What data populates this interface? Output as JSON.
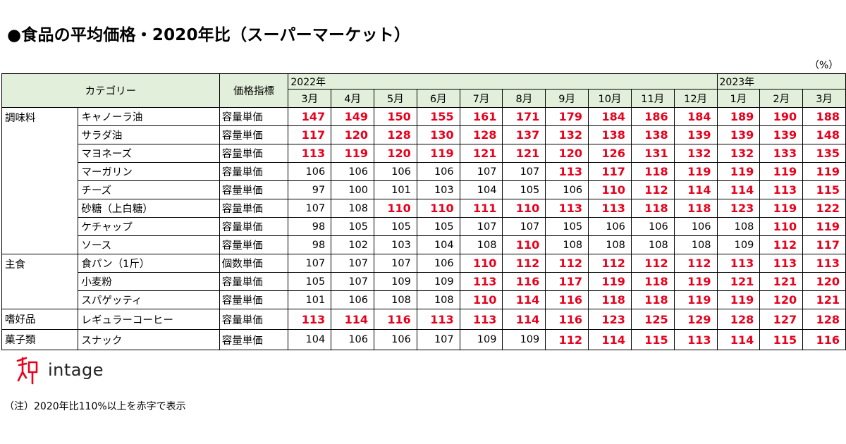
{
  "title": "●食品の平均価格・2020年比（スーパーマーケット）",
  "unit": "（%）",
  "headers": {
    "category": "カテゴリー",
    "indicator": "価格指標"
  },
  "years": [
    {
      "label": "2022年",
      "span": 10
    },
    {
      "label": "2023年",
      "span": 3
    }
  ],
  "months": [
    "3月",
    "4月",
    "5月",
    "6月",
    "7月",
    "8月",
    "9月",
    "10月",
    "11月",
    "12月",
    "1月",
    "2月",
    "3月"
  ],
  "highlight_threshold": 110,
  "highlight_color": "#e8001c",
  "header_bg": "#e2efda",
  "chart_data": {
    "type": "table",
    "title": "●食品の平均価格・2020年比（スーパーマーケット）",
    "unit": "%",
    "columns": [
      "2022年3月",
      "2022年4月",
      "2022年5月",
      "2022年6月",
      "2022年7月",
      "2022年8月",
      "2022年9月",
      "2022年10月",
      "2022年11月",
      "2022年12月",
      "2023年1月",
      "2023年2月",
      "2023年3月"
    ],
    "groups": [
      {
        "name": "調味料",
        "rows": [
          {
            "item": "キャノーラ油",
            "indicator": "容量単価",
            "values": [
              147,
              149,
              150,
              155,
              161,
              171,
              179,
              184,
              186,
              184,
              189,
              190,
              188
            ]
          },
          {
            "item": "サラダ油",
            "indicator": "容量単価",
            "values": [
              117,
              120,
              128,
              130,
              128,
              137,
              132,
              138,
              138,
              139,
              139,
              139,
              148
            ]
          },
          {
            "item": "マヨネーズ",
            "indicator": "容量単価",
            "values": [
              113,
              119,
              120,
              119,
              121,
              121,
              120,
              126,
              131,
              132,
              132,
              133,
              135
            ]
          },
          {
            "item": "マーガリン",
            "indicator": "容量単価",
            "values": [
              106,
              106,
              106,
              106,
              107,
              107,
              113,
              117,
              118,
              119,
              119,
              119,
              119
            ]
          },
          {
            "item": "チーズ",
            "indicator": "容量単価",
            "values": [
              97,
              100,
              101,
              103,
              104,
              105,
              106,
              110,
              112,
              114,
              114,
              113,
              115
            ]
          },
          {
            "item": "砂糖（上白糖）",
            "indicator": "容量単価",
            "values": [
              107,
              108,
              110,
              110,
              111,
              110,
              113,
              113,
              118,
              118,
              123,
              119,
              122
            ]
          },
          {
            "item": "ケチャップ",
            "indicator": "容量単価",
            "values": [
              98,
              105,
              105,
              105,
              107,
              107,
              105,
              106,
              106,
              106,
              108,
              110,
              119
            ]
          },
          {
            "item": "ソース",
            "indicator": "容量単価",
            "values": [
              98,
              102,
              103,
              104,
              108,
              110,
              108,
              108,
              108,
              108,
              109,
              112,
              117
            ]
          }
        ]
      },
      {
        "name": "主食",
        "rows": [
          {
            "item": "食パン（1斤）",
            "indicator": "個数単価",
            "values": [
              107,
              107,
              107,
              106,
              110,
              112,
              112,
              112,
              112,
              112,
              113,
              113,
              113
            ]
          },
          {
            "item": "小麦粉",
            "indicator": "容量単価",
            "values": [
              105,
              107,
              109,
              109,
              113,
              116,
              117,
              119,
              118,
              119,
              121,
              121,
              120
            ]
          },
          {
            "item": "スパゲッティ",
            "indicator": "容量単価",
            "values": [
              101,
              106,
              108,
              108,
              110,
              114,
              116,
              118,
              118,
              119,
              119,
              120,
              121
            ]
          }
        ]
      },
      {
        "name": "嗜好品",
        "rows": [
          {
            "item": "レギュラーコーヒー",
            "indicator": "容量単価",
            "values": [
              113,
              114,
              116,
              113,
              113,
              114,
              116,
              123,
              125,
              129,
              128,
              127,
              128
            ]
          }
        ]
      },
      {
        "name": "菓子類",
        "rows": [
          {
            "item": "スナック",
            "indicator": "容量単価",
            "values": [
              104,
              106,
              106,
              107,
              109,
              109,
              112,
              114,
              115,
              113,
              114,
              115,
              116
            ]
          }
        ]
      }
    ]
  },
  "logo": {
    "icon": "intage-logo-icon",
    "text": "intage"
  },
  "note": "（注）2020年比110%以上を赤字で表示"
}
